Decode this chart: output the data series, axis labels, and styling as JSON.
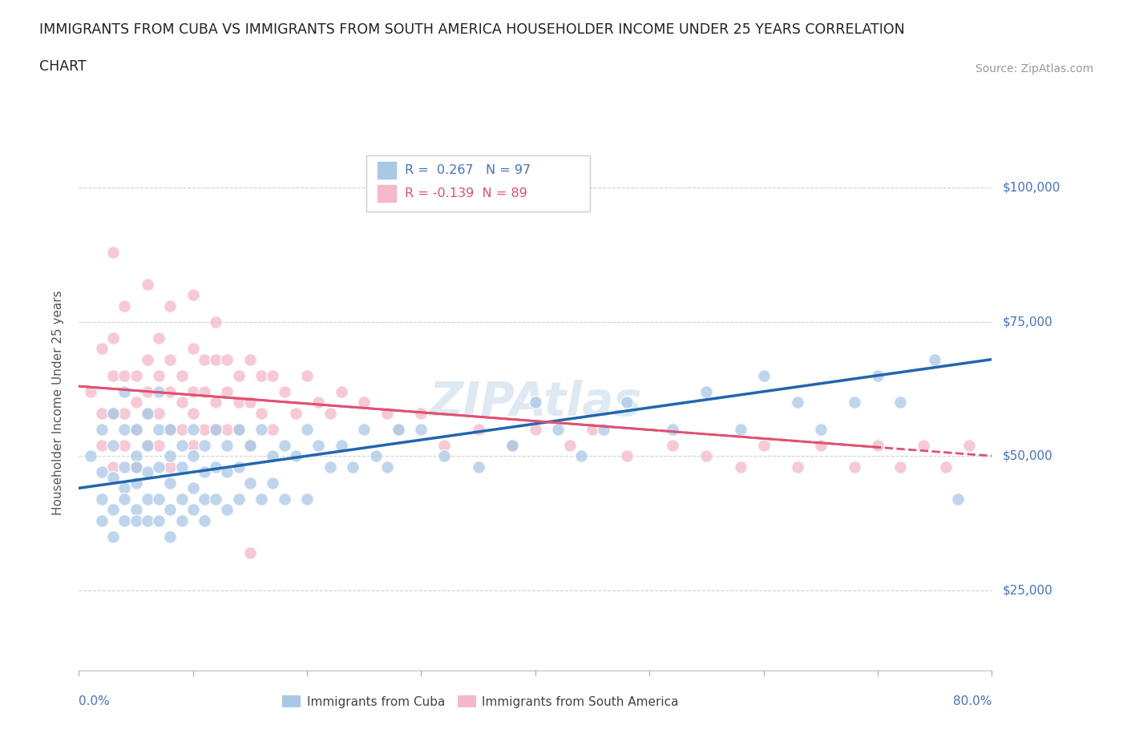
{
  "title_line1": "IMMIGRANTS FROM CUBA VS IMMIGRANTS FROM SOUTH AMERICA HOUSEHOLDER INCOME UNDER 25 YEARS CORRELATION",
  "title_line2": "CHART",
  "source_text": "Source: ZipAtlas.com",
  "ylabel": "Householder Income Under 25 years",
  "xlim": [
    0.0,
    0.8
  ],
  "ylim": [
    10000,
    110000
  ],
  "yticks": [
    25000,
    50000,
    75000,
    100000
  ],
  "yticklabels": [
    "$25,000",
    "$50,000",
    "$75,000",
    "$100,000"
  ],
  "background_color": "#ffffff",
  "grid_color": "#cccccc",
  "cuba_color": "#a8c8e8",
  "sa_color": "#f4b8c8",
  "cuba_line_color": "#2166ac",
  "sa_line_color": "#e05070",
  "cuba_R": 0.267,
  "cuba_N": 97,
  "sa_R": -0.139,
  "sa_N": 89,
  "legend_label_cuba": "Immigrants from Cuba",
  "legend_label_sa": "Immigrants from South America",
  "cuba_scatter_x": [
    0.01,
    0.02,
    0.02,
    0.02,
    0.02,
    0.03,
    0.03,
    0.03,
    0.03,
    0.03,
    0.04,
    0.04,
    0.04,
    0.04,
    0.04,
    0.04,
    0.05,
    0.05,
    0.05,
    0.05,
    0.05,
    0.05,
    0.06,
    0.06,
    0.06,
    0.06,
    0.06,
    0.07,
    0.07,
    0.07,
    0.07,
    0.07,
    0.08,
    0.08,
    0.08,
    0.08,
    0.08,
    0.09,
    0.09,
    0.09,
    0.09,
    0.1,
    0.1,
    0.1,
    0.1,
    0.11,
    0.11,
    0.11,
    0.11,
    0.12,
    0.12,
    0.12,
    0.13,
    0.13,
    0.13,
    0.14,
    0.14,
    0.14,
    0.15,
    0.15,
    0.16,
    0.16,
    0.17,
    0.17,
    0.18,
    0.18,
    0.19,
    0.2,
    0.2,
    0.21,
    0.22,
    0.23,
    0.24,
    0.25,
    0.26,
    0.27,
    0.28,
    0.3,
    0.32,
    0.35,
    0.38,
    0.4,
    0.42,
    0.44,
    0.46,
    0.48,
    0.52,
    0.55,
    0.58,
    0.6,
    0.63,
    0.65,
    0.68,
    0.7,
    0.72,
    0.75,
    0.77
  ],
  "cuba_scatter_y": [
    50000,
    47000,
    55000,
    42000,
    38000,
    52000,
    46000,
    40000,
    35000,
    58000,
    48000,
    44000,
    55000,
    38000,
    42000,
    62000,
    50000,
    45000,
    40000,
    55000,
    38000,
    48000,
    52000,
    47000,
    42000,
    38000,
    58000,
    55000,
    48000,
    42000,
    38000,
    62000,
    50000,
    45000,
    40000,
    55000,
    35000,
    52000,
    48000,
    42000,
    38000,
    55000,
    50000,
    44000,
    40000,
    52000,
    47000,
    42000,
    38000,
    55000,
    48000,
    42000,
    52000,
    47000,
    40000,
    55000,
    48000,
    42000,
    52000,
    45000,
    55000,
    42000,
    50000,
    45000,
    52000,
    42000,
    50000,
    55000,
    42000,
    52000,
    48000,
    52000,
    48000,
    55000,
    50000,
    48000,
    55000,
    55000,
    50000,
    48000,
    52000,
    60000,
    55000,
    50000,
    55000,
    60000,
    55000,
    62000,
    55000,
    65000,
    60000,
    55000,
    60000,
    65000,
    60000,
    68000,
    42000
  ],
  "sa_scatter_x": [
    0.01,
    0.02,
    0.02,
    0.02,
    0.03,
    0.03,
    0.03,
    0.03,
    0.04,
    0.04,
    0.04,
    0.04,
    0.05,
    0.05,
    0.05,
    0.05,
    0.06,
    0.06,
    0.06,
    0.06,
    0.07,
    0.07,
    0.07,
    0.07,
    0.08,
    0.08,
    0.08,
    0.08,
    0.09,
    0.09,
    0.09,
    0.1,
    0.1,
    0.1,
    0.1,
    0.11,
    0.11,
    0.11,
    0.12,
    0.12,
    0.12,
    0.13,
    0.13,
    0.13,
    0.14,
    0.14,
    0.14,
    0.15,
    0.15,
    0.15,
    0.16,
    0.16,
    0.17,
    0.17,
    0.18,
    0.19,
    0.2,
    0.21,
    0.22,
    0.23,
    0.25,
    0.27,
    0.28,
    0.3,
    0.32,
    0.35,
    0.38,
    0.4,
    0.43,
    0.45,
    0.48,
    0.52,
    0.55,
    0.58,
    0.6,
    0.63,
    0.65,
    0.68,
    0.7,
    0.72,
    0.74,
    0.76,
    0.78,
    0.03,
    0.06,
    0.08,
    0.1,
    0.12,
    0.15
  ],
  "sa_scatter_y": [
    62000,
    58000,
    52000,
    70000,
    65000,
    58000,
    72000,
    48000,
    65000,
    58000,
    52000,
    78000,
    65000,
    60000,
    55000,
    48000,
    68000,
    62000,
    58000,
    52000,
    72000,
    65000,
    58000,
    52000,
    68000,
    62000,
    55000,
    48000,
    65000,
    60000,
    55000,
    70000,
    62000,
    58000,
    52000,
    68000,
    62000,
    55000,
    68000,
    60000,
    55000,
    68000,
    62000,
    55000,
    65000,
    60000,
    55000,
    68000,
    60000,
    52000,
    65000,
    58000,
    65000,
    55000,
    62000,
    58000,
    65000,
    60000,
    58000,
    62000,
    60000,
    58000,
    55000,
    58000,
    52000,
    55000,
    52000,
    55000,
    52000,
    55000,
    50000,
    52000,
    50000,
    48000,
    52000,
    48000,
    52000,
    48000,
    52000,
    48000,
    52000,
    48000,
    52000,
    88000,
    82000,
    78000,
    80000,
    75000,
    32000
  ]
}
